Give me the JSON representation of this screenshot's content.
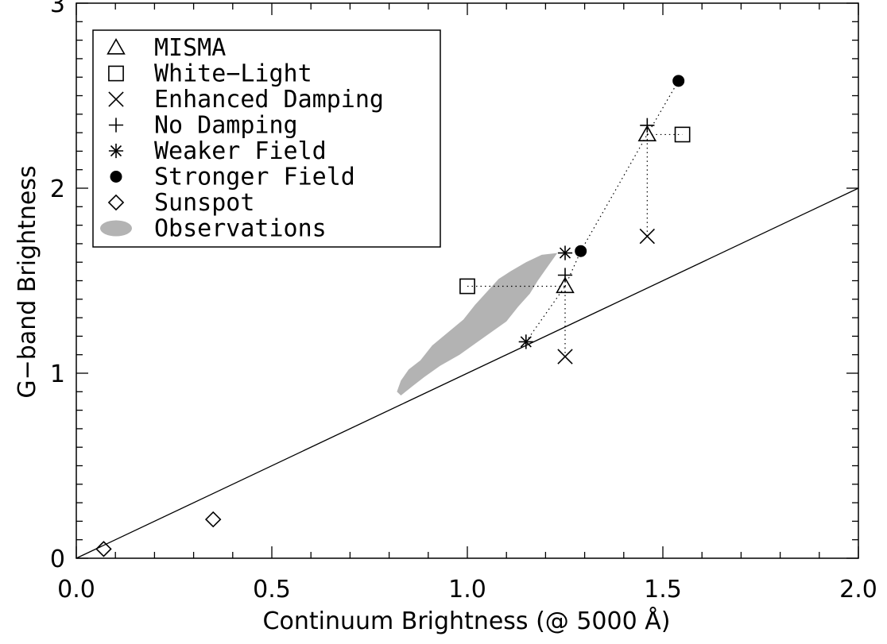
{
  "chart_data": {
    "type": "scatter",
    "xlabel": "Continuum Brightness (@ 5000 Å)",
    "ylabel": "G−band Brightness",
    "xlim": [
      0.0,
      2.0
    ],
    "ylim": [
      0.0,
      3.0
    ],
    "x_ticks": [
      {
        "value": 0.0,
        "label": "0.0"
      },
      {
        "value": 0.5,
        "label": "0.5"
      },
      {
        "value": 1.0,
        "label": "1.0"
      },
      {
        "value": 1.5,
        "label": "1.5"
      },
      {
        "value": 2.0,
        "label": "2.0"
      }
    ],
    "y_ticks": [
      {
        "value": 0,
        "label": "0"
      },
      {
        "value": 1,
        "label": "1"
      },
      {
        "value": 2,
        "label": "2"
      },
      {
        "value": 3,
        "label": "3"
      }
    ],
    "grid": false,
    "legend_position": "top-left",
    "legend": [
      {
        "symbol": "triangle",
        "label": "MISMA"
      },
      {
        "symbol": "square",
        "label": "White−Light"
      },
      {
        "symbol": "x",
        "label": "Enhanced Damping"
      },
      {
        "symbol": "plus",
        "label": "No Damping"
      },
      {
        "symbol": "asterisk",
        "label": "Weaker Field"
      },
      {
        "symbol": "filled-circle",
        "label": "Stronger Field"
      },
      {
        "symbol": "diamond",
        "label": "Sunspot"
      },
      {
        "symbol": "ellipse",
        "label": "Observations"
      }
    ],
    "reference_line": {
      "x": [
        0.0,
        2.0
      ],
      "y": [
        0.0,
        2.0
      ]
    },
    "series": [
      {
        "symbol": "triangle",
        "points": [
          [
            1.25,
            1.47
          ],
          [
            1.46,
            2.29
          ]
        ]
      },
      {
        "symbol": "square",
        "points": [
          [
            1.0,
            1.47
          ],
          [
            1.55,
            2.29
          ]
        ]
      },
      {
        "symbol": "x",
        "points": [
          [
            1.25,
            1.09
          ],
          [
            1.46,
            1.74
          ]
        ]
      },
      {
        "symbol": "plus",
        "points": [
          [
            1.25,
            1.53
          ],
          [
            1.46,
            2.34
          ]
        ]
      },
      {
        "symbol": "asterisk",
        "points": [
          [
            1.15,
            1.17
          ],
          [
            1.25,
            1.65
          ]
        ]
      },
      {
        "symbol": "filled-circle",
        "points": [
          [
            1.29,
            1.66
          ],
          [
            1.54,
            2.58
          ]
        ]
      },
      {
        "symbol": "diamond",
        "points": [
          [
            0.07,
            0.05
          ],
          [
            0.35,
            0.21
          ]
        ]
      }
    ],
    "connectors": [
      [
        [
          1.0,
          1.47
        ],
        [
          1.25,
          1.47
        ]
      ],
      [
        [
          1.25,
          1.47
        ],
        [
          1.25,
          1.09
        ]
      ],
      [
        [
          1.15,
          1.17
        ],
        [
          1.25,
          1.47
        ]
      ],
      [
        [
          1.25,
          1.47
        ],
        [
          1.29,
          1.66
        ]
      ],
      [
        [
          1.29,
          1.66
        ],
        [
          1.46,
          2.29
        ]
      ],
      [
        [
          1.46,
          2.29
        ],
        [
          1.55,
          2.29
        ]
      ],
      [
        [
          1.46,
          2.29
        ],
        [
          1.46,
          1.74
        ]
      ],
      [
        [
          1.46,
          2.29
        ],
        [
          1.54,
          2.58
        ]
      ]
    ],
    "observation_region": [
      [
        0.82,
        0.9
      ],
      [
        0.83,
        0.96
      ],
      [
        0.85,
        1.02
      ],
      [
        0.88,
        1.07
      ],
      [
        0.91,
        1.15
      ],
      [
        0.95,
        1.22
      ],
      [
        0.99,
        1.29
      ],
      [
        1.02,
        1.37
      ],
      [
        1.05,
        1.44
      ],
      [
        1.08,
        1.51
      ],
      [
        1.11,
        1.55
      ],
      [
        1.15,
        1.6
      ],
      [
        1.19,
        1.64
      ],
      [
        1.23,
        1.65
      ],
      [
        1.2,
        1.56
      ],
      [
        1.18,
        1.5
      ],
      [
        1.16,
        1.43
      ],
      [
        1.13,
        1.36
      ],
      [
        1.1,
        1.28
      ],
      [
        1.06,
        1.22
      ],
      [
        1.02,
        1.16
      ],
      [
        0.98,
        1.1
      ],
      [
        0.93,
        1.04
      ],
      [
        0.89,
        0.98
      ],
      [
        0.86,
        0.93
      ],
      [
        0.83,
        0.88
      ]
    ],
    "colors": {
      "observations": "#b3b3b3",
      "ink": "#000000"
    }
  }
}
